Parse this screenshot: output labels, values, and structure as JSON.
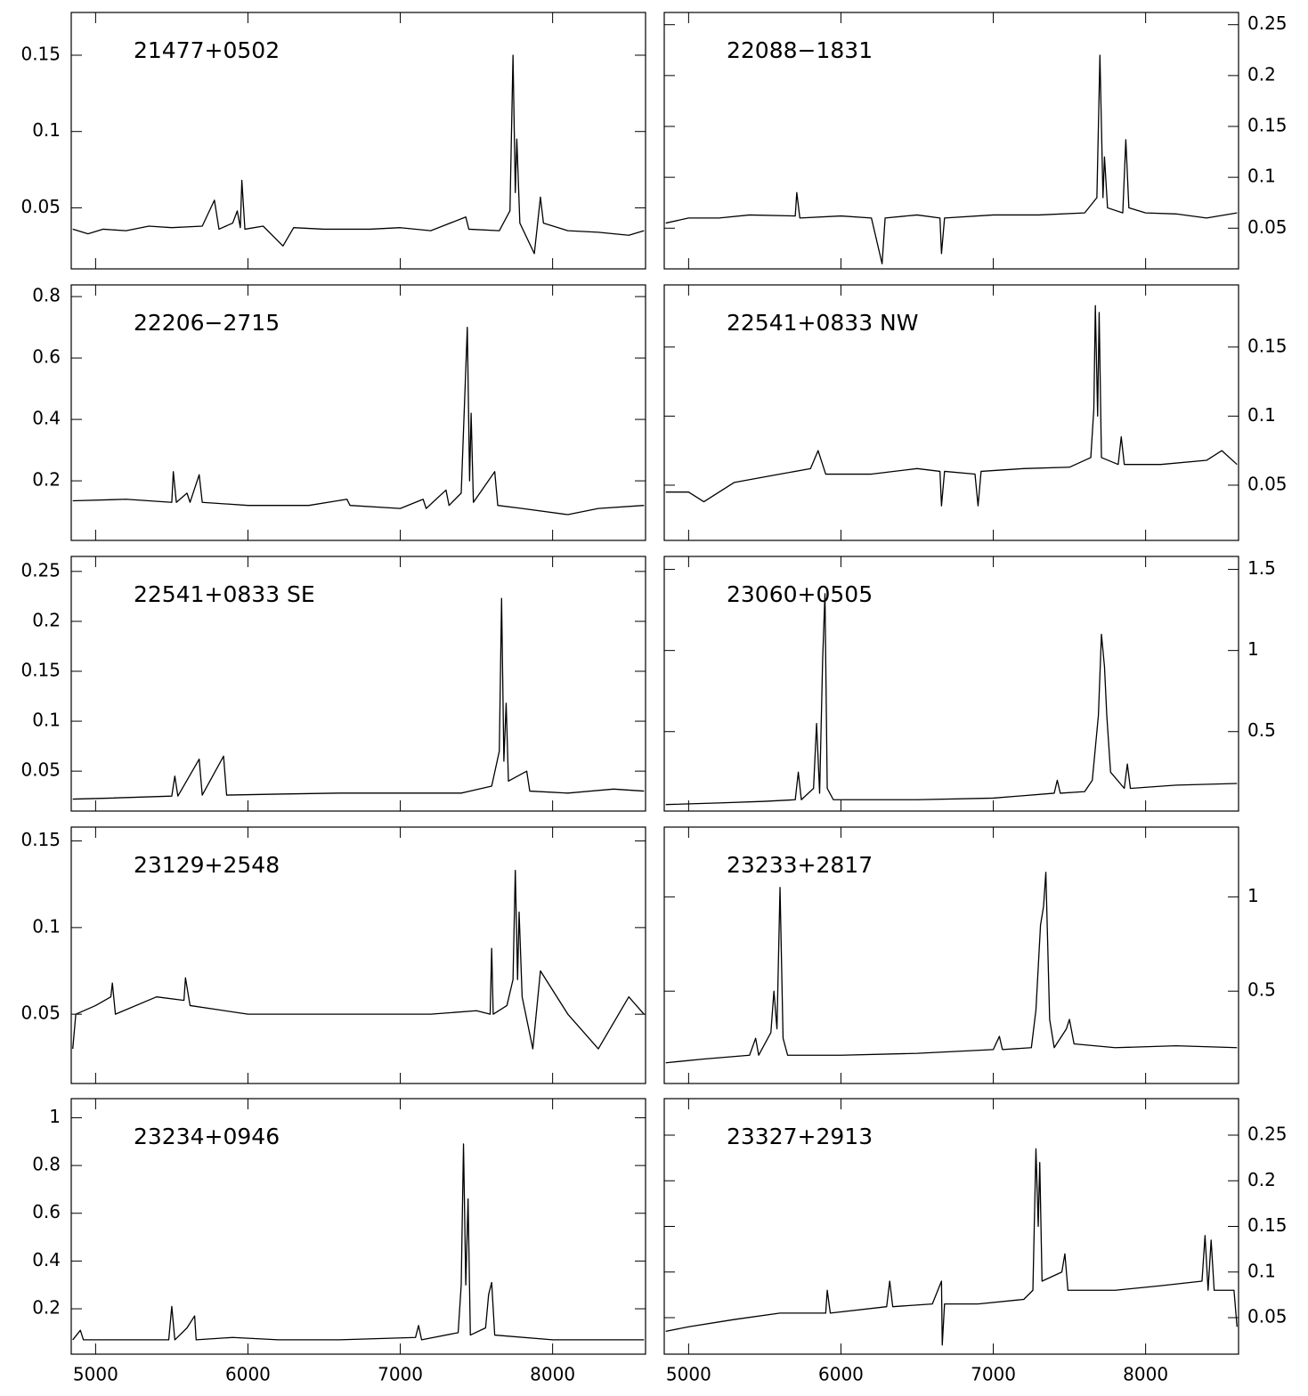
{
  "chart_data": [
    {
      "type": "line",
      "title": "21477+0502",
      "color": "#000000",
      "y_axis_side": "left",
      "show_xtick_labels": false,
      "xlim": [
        4840,
        8610
      ],
      "ylim": [
        0.01,
        0.178
      ],
      "xticks": [
        5000,
        6000,
        7000,
        8000
      ],
      "yticks": [
        0.05,
        0.1,
        0.15
      ],
      "x": [
        4850,
        4950,
        5050,
        5200,
        5350,
        5500,
        5700,
        5780,
        5810,
        5900,
        5930,
        5950,
        5960,
        5980,
        6100,
        6230,
        6300,
        6500,
        6800,
        7000,
        7200,
        7430,
        7450,
        7650,
        7720,
        7740,
        7755,
        7765,
        7785,
        7880,
        7920,
        7940,
        8100,
        8300,
        8500,
        8600
      ],
      "values": [
        0.036,
        0.033,
        0.036,
        0.035,
        0.038,
        0.037,
        0.038,
        0.055,
        0.036,
        0.04,
        0.048,
        0.037,
        0.068,
        0.036,
        0.038,
        0.025,
        0.037,
        0.036,
        0.036,
        0.037,
        0.035,
        0.044,
        0.036,
        0.035,
        0.048,
        0.15,
        0.06,
        0.095,
        0.04,
        0.02,
        0.057,
        0.04,
        0.035,
        0.034,
        0.032,
        0.035
      ]
    },
    {
      "type": "line",
      "title": "22088−1831",
      "color": "#000000",
      "y_axis_side": "right",
      "show_xtick_labels": false,
      "xlim": [
        4840,
        8610
      ],
      "ylim": [
        0.01,
        0.262
      ],
      "xticks": [
        5000,
        6000,
        7000,
        8000
      ],
      "yticks": [
        0.05,
        0.1,
        0.15,
        0.2,
        0.25
      ],
      "x": [
        4850,
        5000,
        5200,
        5400,
        5700,
        5710,
        5730,
        6000,
        6200,
        6270,
        6290,
        6500,
        6650,
        6660,
        6680,
        7000,
        7300,
        7600,
        7680,
        7700,
        7720,
        7730,
        7750,
        7850,
        7870,
        7890,
        8000,
        8200,
        8400,
        8600
      ],
      "values": [
        0.055,
        0.06,
        0.06,
        0.063,
        0.062,
        0.085,
        0.06,
        0.062,
        0.06,
        0.015,
        0.06,
        0.063,
        0.06,
        0.025,
        0.06,
        0.063,
        0.063,
        0.065,
        0.08,
        0.22,
        0.08,
        0.12,
        0.07,
        0.065,
        0.137,
        0.07,
        0.065,
        0.064,
        0.06,
        0.065
      ]
    },
    {
      "type": "line",
      "title": "22206−2715",
      "color": "#000000",
      "y_axis_side": "left",
      "show_xtick_labels": false,
      "xlim": [
        4840,
        8610
      ],
      "ylim": [
        0.006,
        0.838
      ],
      "xticks": [
        5000,
        6000,
        7000,
        8000
      ],
      "yticks": [
        0.2,
        0.4,
        0.6,
        0.8
      ],
      "x": [
        4850,
        5200,
        5500,
        5510,
        5530,
        5600,
        5620,
        5680,
        5700,
        6000,
        6400,
        6650,
        6670,
        7000,
        7150,
        7170,
        7300,
        7320,
        7400,
        7440,
        7455,
        7465,
        7480,
        7620,
        7640,
        7800,
        8100,
        8300,
        8600
      ],
      "values": [
        0.135,
        0.14,
        0.13,
        0.23,
        0.13,
        0.16,
        0.13,
        0.22,
        0.13,
        0.12,
        0.12,
        0.14,
        0.12,
        0.11,
        0.14,
        0.11,
        0.17,
        0.12,
        0.16,
        0.7,
        0.2,
        0.42,
        0.13,
        0.23,
        0.12,
        0.11,
        0.09,
        0.11,
        0.12
      ]
    },
    {
      "type": "line",
      "title": "22541+0833 NW",
      "color": "#000000",
      "y_axis_side": "right",
      "show_xtick_labels": false,
      "xlim": [
        4840,
        8610
      ],
      "ylim": [
        0.01,
        0.195
      ],
      "xticks": [
        5000,
        6000,
        7000,
        8000
      ],
      "yticks": [
        0.05,
        0.1,
        0.15
      ],
      "x": [
        4850,
        5000,
        5100,
        5300,
        5600,
        5800,
        5850,
        5900,
        6200,
        6500,
        6650,
        6660,
        6680,
        6880,
        6900,
        6920,
        7200,
        7500,
        7640,
        7660,
        7670,
        7685,
        7695,
        7710,
        7820,
        7840,
        7860,
        8100,
        8400,
        8500,
        8600
      ],
      "values": [
        0.045,
        0.045,
        0.038,
        0.052,
        0.058,
        0.062,
        0.075,
        0.058,
        0.058,
        0.062,
        0.06,
        0.035,
        0.06,
        0.058,
        0.035,
        0.06,
        0.062,
        0.063,
        0.07,
        0.105,
        0.18,
        0.1,
        0.175,
        0.07,
        0.065,
        0.085,
        0.065,
        0.065,
        0.068,
        0.075,
        0.065
      ]
    },
    {
      "type": "line",
      "title": "22541+0833 SE",
      "color": "#000000",
      "y_axis_side": "left",
      "show_xtick_labels": false,
      "xlim": [
        4840,
        8610
      ],
      "ylim": [
        0.01,
        0.265
      ],
      "xticks": [
        5000,
        6000,
        7000,
        8000
      ],
      "yticks": [
        0.05,
        0.1,
        0.15,
        0.2,
        0.25
      ],
      "x": [
        4850,
        5100,
        5500,
        5520,
        5540,
        5680,
        5700,
        5840,
        5860,
        6200,
        6600,
        7000,
        7400,
        7600,
        7650,
        7665,
        7680,
        7695,
        7710,
        7830,
        7850,
        8100,
        8400,
        8600
      ],
      "values": [
        0.022,
        0.023,
        0.025,
        0.045,
        0.025,
        0.062,
        0.026,
        0.065,
        0.026,
        0.027,
        0.028,
        0.028,
        0.028,
        0.035,
        0.07,
        0.223,
        0.06,
        0.118,
        0.04,
        0.05,
        0.03,
        0.028,
        0.032,
        0.03
      ]
    },
    {
      "type": "line",
      "title": "23060+0505",
      "color": "#000000",
      "y_axis_side": "right",
      "show_xtick_labels": false,
      "xlim": [
        4840,
        8610
      ],
      "ylim": [
        0.01,
        1.58
      ],
      "xticks": [
        5000,
        6000,
        7000,
        8000
      ],
      "yticks": [
        0.5,
        1,
        1.5
      ],
      "x": [
        4850,
        5200,
        5500,
        5700,
        5720,
        5740,
        5820,
        5840,
        5860,
        5880,
        5895,
        5910,
        5950,
        6500,
        7000,
        7400,
        7420,
        7440,
        7600,
        7650,
        7690,
        7710,
        7730,
        7745,
        7770,
        7860,
        7880,
        7900,
        8200,
        8600
      ],
      "values": [
        0.05,
        0.06,
        0.07,
        0.08,
        0.25,
        0.08,
        0.15,
        0.55,
        0.12,
        0.95,
        1.35,
        0.15,
        0.08,
        0.08,
        0.09,
        0.12,
        0.2,
        0.12,
        0.13,
        0.2,
        0.6,
        1.1,
        0.9,
        0.6,
        0.25,
        0.15,
        0.3,
        0.15,
        0.17,
        0.18
      ]
    },
    {
      "type": "line",
      "title": "23129+2548",
      "color": "#000000",
      "y_axis_side": "left",
      "show_xtick_labels": false,
      "xlim": [
        4840,
        8610
      ],
      "ylim": [
        0.01,
        0.158
      ],
      "xticks": [
        5000,
        6000,
        7000,
        8000
      ],
      "yticks": [
        0.05,
        0.1,
        0.15
      ],
      "x": [
        4850,
        4870,
        5000,
        5100,
        5110,
        5130,
        5400,
        5580,
        5590,
        5620,
        6000,
        6400,
        6800,
        7200,
        7500,
        7590,
        7600,
        7610,
        7700,
        7740,
        7755,
        7770,
        7780,
        7800,
        7870,
        7920,
        8100,
        8300,
        8500,
        8600
      ],
      "values": [
        0.03,
        0.05,
        0.055,
        0.06,
        0.068,
        0.05,
        0.06,
        0.058,
        0.071,
        0.055,
        0.05,
        0.05,
        0.05,
        0.05,
        0.052,
        0.05,
        0.088,
        0.05,
        0.055,
        0.07,
        0.133,
        0.07,
        0.109,
        0.06,
        0.03,
        0.075,
        0.05,
        0.03,
        0.06,
        0.05
      ]
    },
    {
      "type": "line",
      "title": "23233+2817",
      "color": "#000000",
      "y_axis_side": "right",
      "show_xtick_labels": false,
      "xlim": [
        4840,
        8610
      ],
      "ylim": [
        0.01,
        1.37
      ],
      "xticks": [
        5000,
        6000,
        7000,
        8000
      ],
      "yticks": [
        0.5,
        1
      ],
      "x": [
        4850,
        5100,
        5400,
        5440,
        5460,
        5540,
        5560,
        5580,
        5600,
        5620,
        5650,
        6000,
        6500,
        7000,
        7040,
        7060,
        7250,
        7280,
        7310,
        7330,
        7345,
        7370,
        7400,
        7480,
        7500,
        7530,
        7800,
        8200,
        8600
      ],
      "values": [
        0.12,
        0.14,
        0.16,
        0.25,
        0.16,
        0.28,
        0.5,
        0.3,
        1.05,
        0.25,
        0.16,
        0.16,
        0.17,
        0.19,
        0.26,
        0.19,
        0.2,
        0.4,
        0.85,
        0.95,
        1.13,
        0.35,
        0.2,
        0.3,
        0.35,
        0.22,
        0.2,
        0.21,
        0.2
      ]
    },
    {
      "type": "line",
      "title": "23234+0946",
      "color": "#000000",
      "y_axis_side": "left",
      "show_xtick_labels": true,
      "xlim": [
        4840,
        8610
      ],
      "ylim": [
        0.01,
        1.08
      ],
      "xticks": [
        5000,
        6000,
        7000,
        8000
      ],
      "yticks": [
        0.2,
        0.4,
        0.6,
        0.8,
        1
      ],
      "x": [
        4850,
        4900,
        4920,
        5200,
        5480,
        5500,
        5520,
        5600,
        5650,
        5660,
        5900,
        6200,
        6600,
        7100,
        7120,
        7140,
        7380,
        7400,
        7415,
        7430,
        7445,
        7460,
        7560,
        7580,
        7600,
        7620,
        8000,
        8300,
        8600
      ],
      "values": [
        0.07,
        0.11,
        0.07,
        0.07,
        0.07,
        0.21,
        0.07,
        0.12,
        0.17,
        0.07,
        0.08,
        0.07,
        0.07,
        0.08,
        0.13,
        0.07,
        0.1,
        0.3,
        0.89,
        0.3,
        0.66,
        0.09,
        0.12,
        0.26,
        0.31,
        0.09,
        0.07,
        0.07,
        0.07
      ]
    },
    {
      "type": "line",
      "title": "23327+2913",
      "color": "#000000",
      "y_axis_side": "right",
      "show_xtick_labels": true,
      "xlim": [
        4840,
        8610
      ],
      "ylim": [
        0.01,
        0.29
      ],
      "xticks": [
        5000,
        6000,
        7000,
        8000
      ],
      "yticks": [
        0.05,
        0.1,
        0.15,
        0.2,
        0.25
      ],
      "x": [
        4850,
        5000,
        5300,
        5600,
        5900,
        5910,
        5930,
        6300,
        6320,
        6340,
        6600,
        6660,
        6665,
        6680,
        6900,
        7200,
        7260,
        7280,
        7295,
        7305,
        7320,
        7450,
        7470,
        7490,
        7800,
        8100,
        8370,
        8390,
        8410,
        8430,
        8450,
        8580,
        8600
      ],
      "values": [
        0.035,
        0.04,
        0.048,
        0.055,
        0.055,
        0.08,
        0.055,
        0.062,
        0.09,
        0.062,
        0.065,
        0.09,
        0.02,
        0.065,
        0.065,
        0.07,
        0.08,
        0.235,
        0.15,
        0.22,
        0.09,
        0.1,
        0.12,
        0.08,
        0.08,
        0.085,
        0.09,
        0.14,
        0.08,
        0.135,
        0.08,
        0.08,
        0.04
      ]
    }
  ]
}
